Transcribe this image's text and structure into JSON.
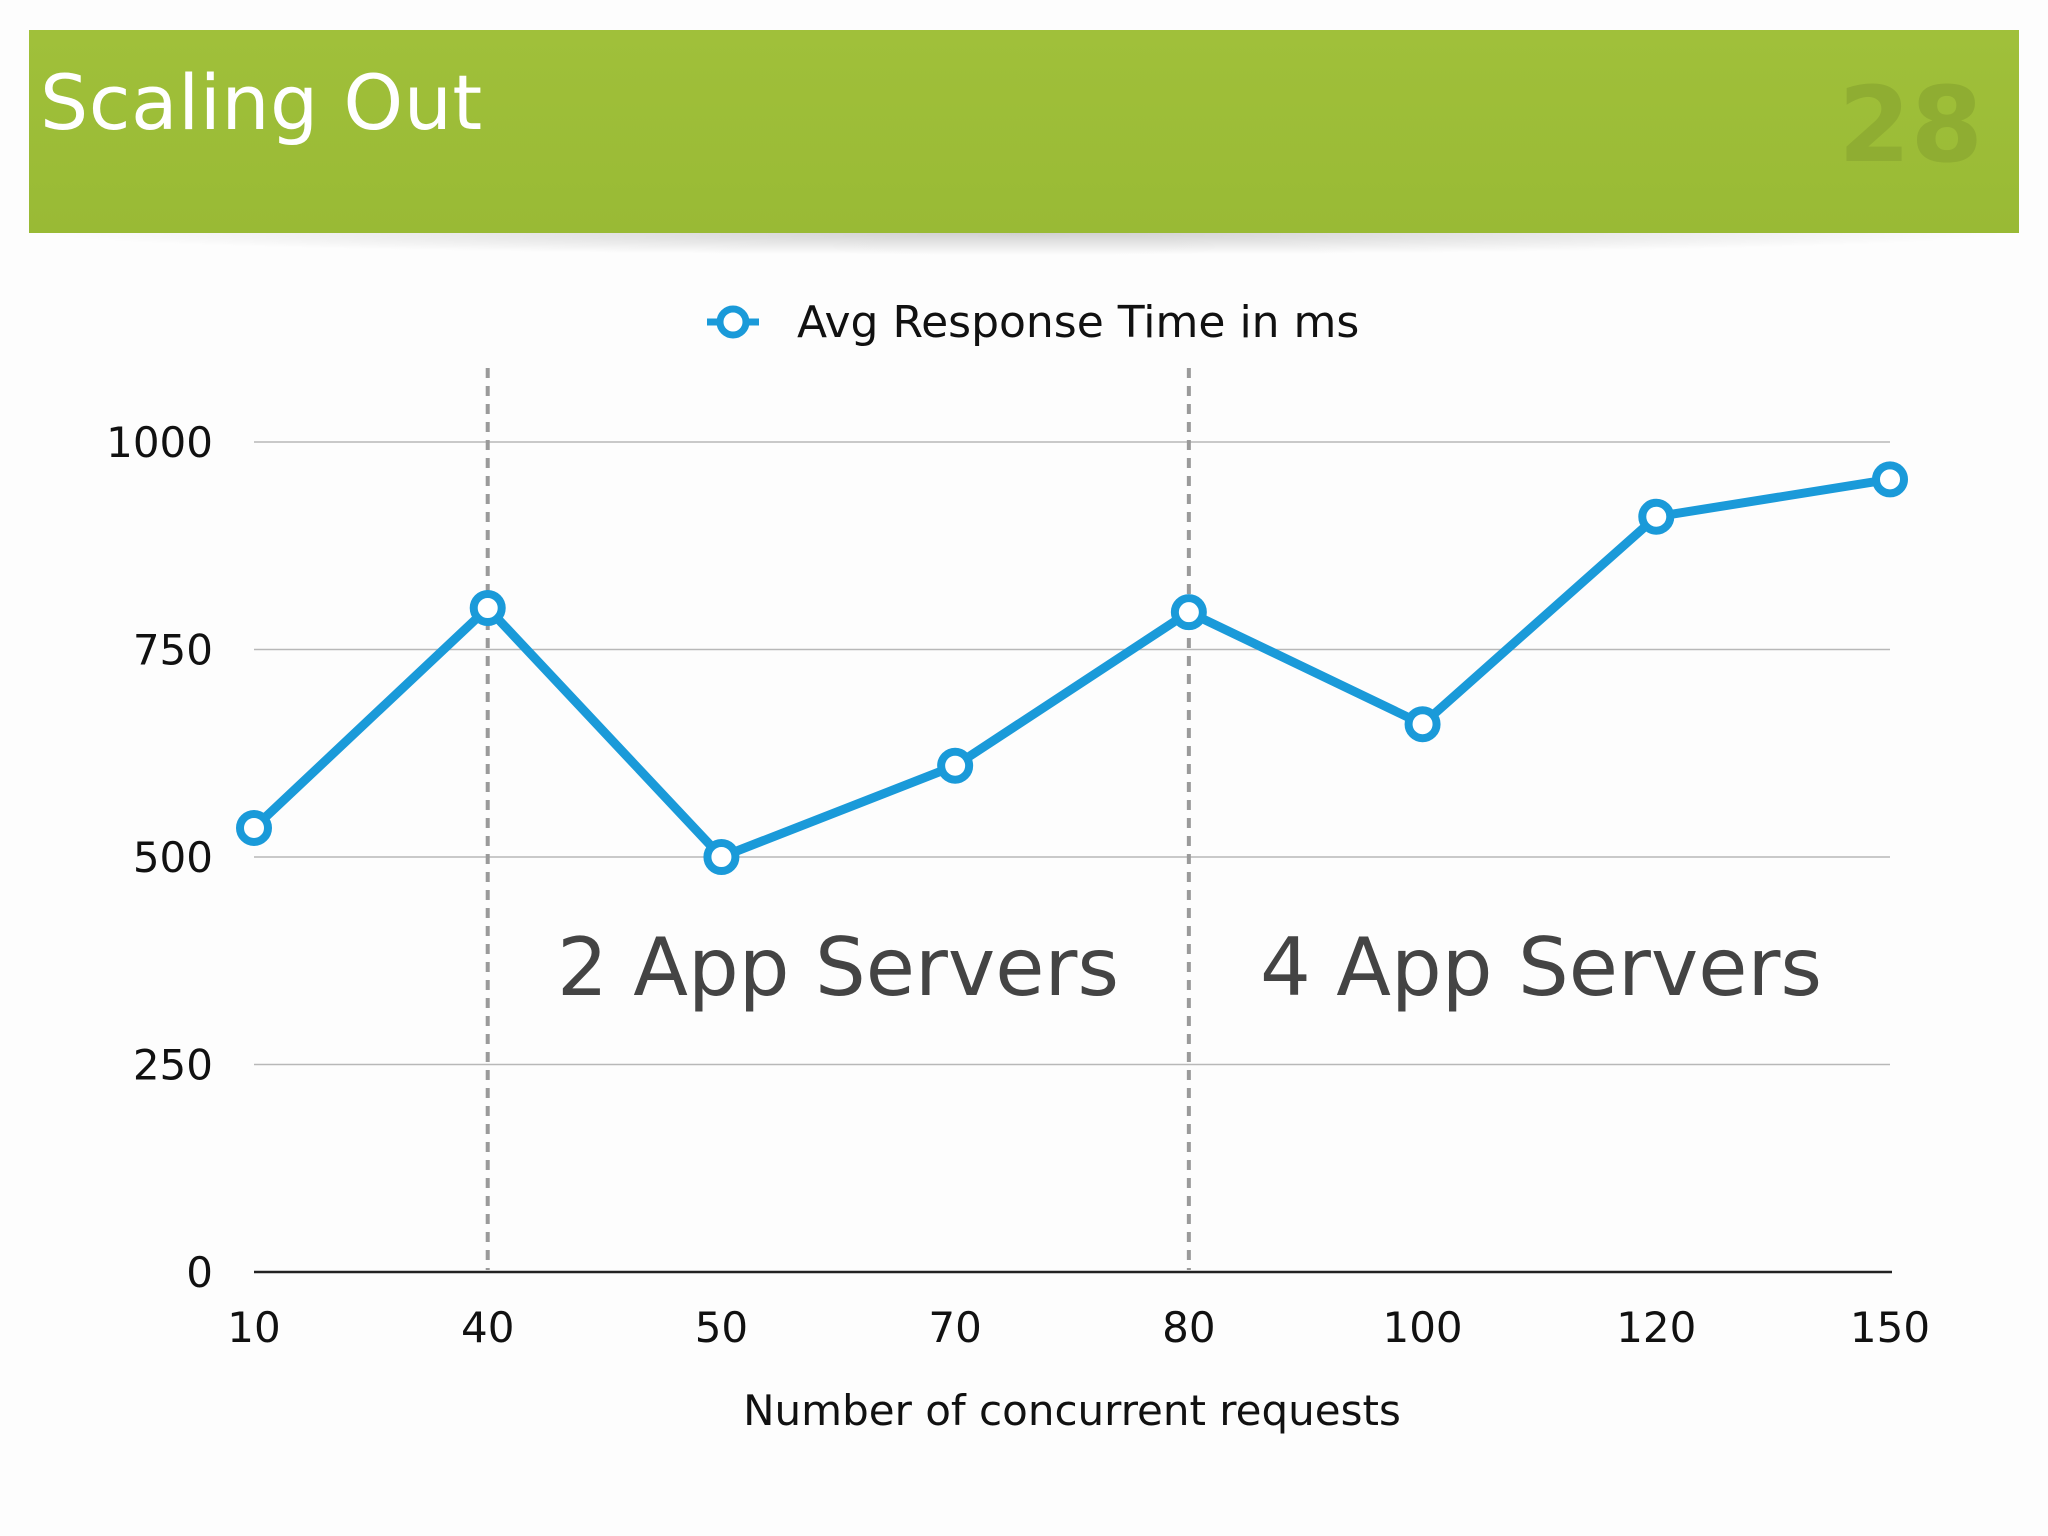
{
  "slide": {
    "title": "Scaling Out",
    "number": "28"
  },
  "colors": {
    "header": "#9fbf38",
    "series": "#1a9ad9",
    "grid": "#b8b8b8",
    "divider": "#9a9a9a"
  },
  "chart_data": {
    "type": "line",
    "title": "",
    "xlabel": "Number of concurrent requests",
    "ylabel": "",
    "categories": [
      "10",
      "40",
      "50",
      "70",
      "80",
      "100",
      "120",
      "150"
    ],
    "series": [
      {
        "name": "Avg Response Time in ms",
        "values": [
          535,
          800,
          500,
          610,
          795,
          660,
          910,
          955
        ]
      }
    ],
    "ylim": [
      0,
      1000
    ],
    "yticks": [
      "0",
      "250",
      "500",
      "750",
      "1000"
    ],
    "grid": true,
    "legend": "top-center",
    "dividers_after_category": [
      "40",
      "80"
    ],
    "annotations": [
      {
        "text": "2 App Servers",
        "region": "between 40 and 80"
      },
      {
        "text": "4 App Servers",
        "region": "between 80 and 150"
      }
    ]
  }
}
